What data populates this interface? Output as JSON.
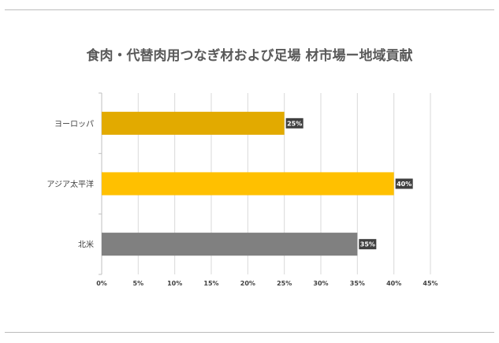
{
  "chart_data": {
    "type": "bar",
    "orientation": "horizontal",
    "title": "食肉・代替肉用つなぎ材および足場  材市場ー地域貢献",
    "categories": [
      "ヨーロッパ",
      "アジア太平洋",
      "北米"
    ],
    "values": [
      25,
      40,
      35
    ],
    "data_labels": [
      "25%",
      "40%",
      "35%"
    ],
    "colors": [
      "#e2aa00",
      "#ffc000",
      "#808080"
    ],
    "x_ticks": [
      "0%",
      "5%",
      "10%",
      "15%",
      "20%",
      "25%",
      "30%",
      "35%",
      "40%",
      "45%"
    ],
    "xlim": [
      0,
      45
    ],
    "grid": true,
    "legend": "none"
  }
}
